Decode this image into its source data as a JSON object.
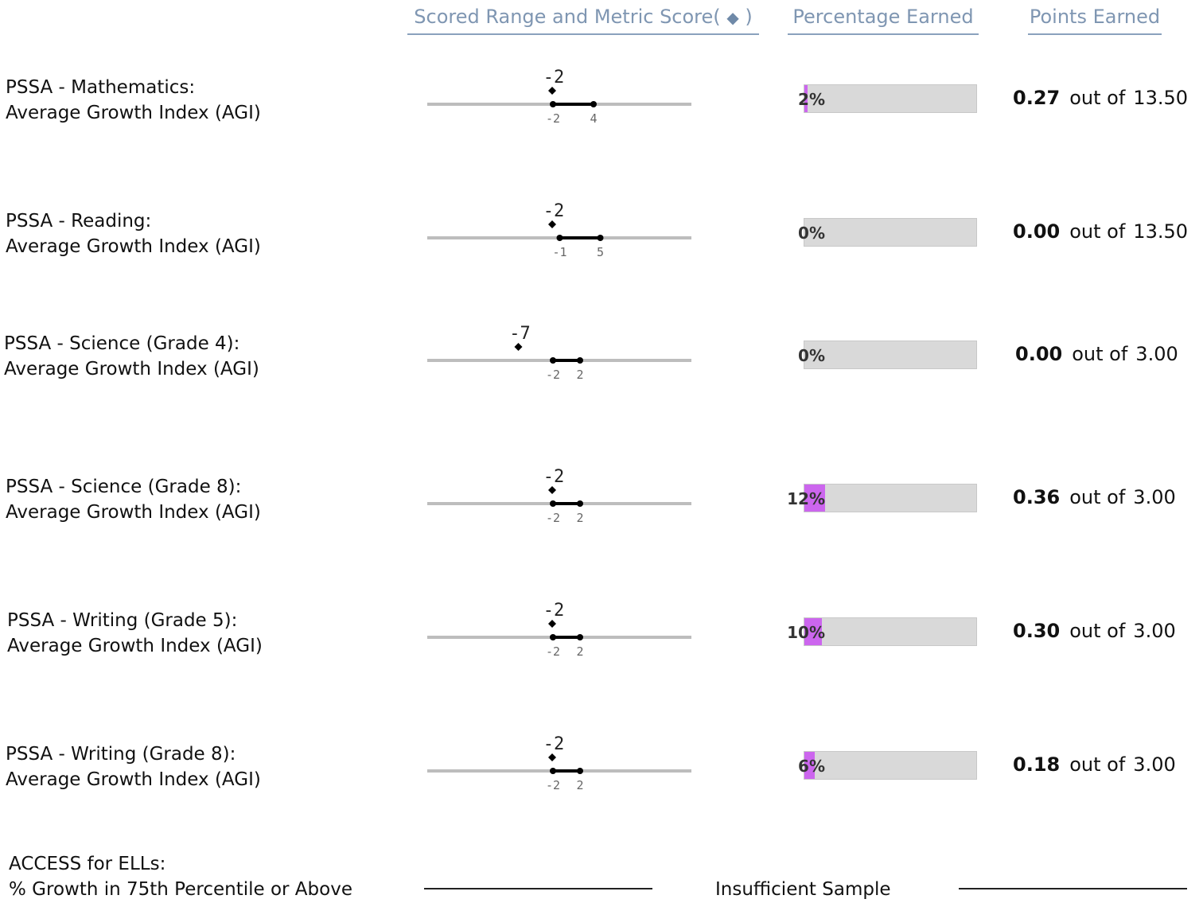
{
  "headers": {
    "scored_range": "Scored Range and Metric Score",
    "score_marker_open": "(",
    "score_marker_symbol": "◆",
    "score_marker_close": ")",
    "percentage_earned": "Percentage Earned",
    "points_earned": "Points Earned"
  },
  "colors": {
    "header_text": "#7f96b2",
    "bar_fill": "#cc66ee",
    "bar_track": "#d9d9d9"
  },
  "rows": [
    {
      "label_line1": "PSSA - Mathematics:",
      "label_line2": "Average Growth Index (AGI)",
      "score_label": "-2",
      "score": -2,
      "range_min_label": "-2",
      "range_max_label": "4",
      "range_min": -2,
      "range_max": 4,
      "percent_label": "2%",
      "percent": 0.02,
      "points": "0.27",
      "out_of_text": "out of",
      "max_points": "13.50"
    },
    {
      "label_line1": "PSSA - Reading:",
      "label_line2": "Average Growth Index (AGI)",
      "score_label": "-2",
      "score": -2,
      "range_min_label": "-1",
      "range_max_label": "5",
      "range_min": -1,
      "range_max": 5,
      "percent_label": "0%",
      "percent": 0.0,
      "points": "0.00",
      "out_of_text": "out of",
      "max_points": "13.50"
    },
    {
      "label_line1": "PSSA - Science (Grade 4):",
      "label_line2": "Average Growth Index (AGI)",
      "score_label": "-7",
      "score": -7,
      "range_min_label": "-2",
      "range_max_label": "2",
      "range_min": -2,
      "range_max": 2,
      "percent_label": "0%",
      "percent": 0.0,
      "points": "0.00",
      "out_of_text": "out of",
      "max_points": "3.00"
    },
    {
      "label_line1": "PSSA - Science (Grade 8):",
      "label_line2": "Average Growth Index (AGI)",
      "score_label": "-2",
      "score": -2,
      "range_min_label": "-2",
      "range_max_label": "2",
      "range_min": -2,
      "range_max": 2,
      "percent_label": "12%",
      "percent": 0.12,
      "points": "0.36",
      "out_of_text": "out of",
      "max_points": "3.00"
    },
    {
      "label_line1": "PSSA - Writing (Grade 5):",
      "label_line2": "Average Growth Index (AGI)",
      "score_label": "-2",
      "score": -2,
      "range_min_label": "-2",
      "range_max_label": "2",
      "range_min": -2,
      "range_max": 2,
      "percent_label": "10%",
      "percent": 0.1,
      "points": "0.30",
      "out_of_text": "out of",
      "max_points": "3.00"
    },
    {
      "label_line1": "PSSA - Writing (Grade 8):",
      "label_line2": "Average Growth Index (AGI)",
      "score_label": "-2",
      "score": -2,
      "range_min_label": "-2",
      "range_max_label": "2",
      "range_min": -2,
      "range_max": 2,
      "percent_label": "6%",
      "percent": 0.06,
      "points": "0.18",
      "out_of_text": "out of",
      "max_points": "3.00"
    }
  ],
  "access_row": {
    "label_line1": "ACCESS for ELLs:",
    "label_line2": "% Growth in 75th Percentile or Above",
    "status": "Insufficient Sample"
  }
}
